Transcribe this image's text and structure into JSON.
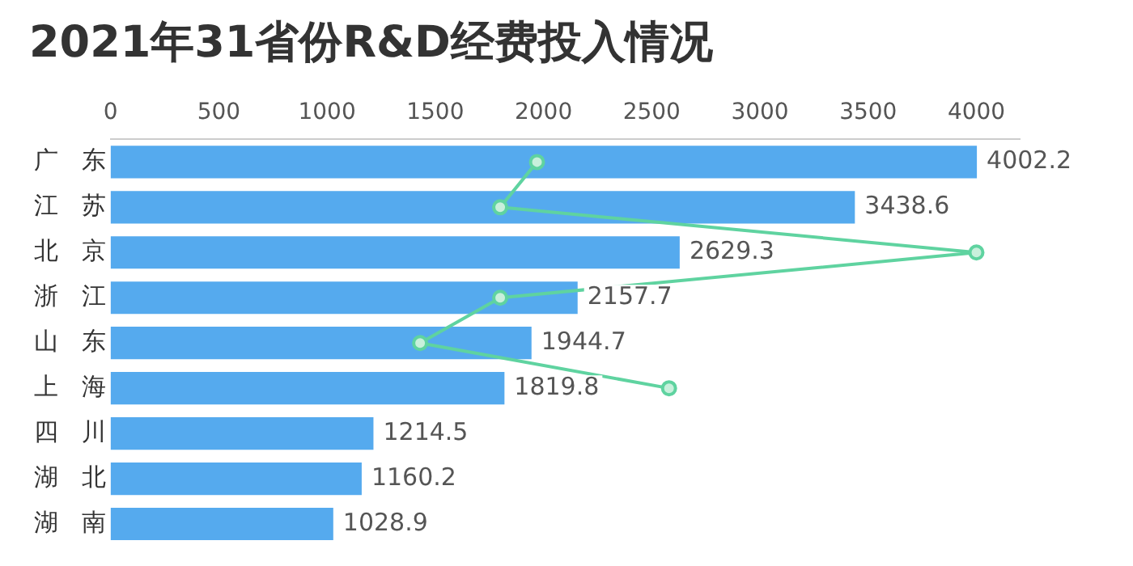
{
  "chart_data": {
    "type": "bar",
    "orientation": "horizontal",
    "title": "2021年31省份R&D经费投入情况",
    "categories": [
      "广东",
      "江苏",
      "北京",
      "浙江",
      "山东",
      "上海",
      "四川",
      "湖北",
      "湖南"
    ],
    "series": [
      {
        "color": "#55aaee",
        "values": [
          4002.2,
          3438.6,
          2629.3,
          2157.7,
          1944.7,
          1819.8,
          1214.5,
          1160.2,
          1028.9
        ],
        "value_labels": [
          "4002.2",
          "3438.6",
          "2629.3",
          "2157.7",
          "1944.7",
          "1819.8",
          "1214.5",
          "1160.2",
          "1028.9"
        ]
      },
      {
        "type": "line",
        "color": "#5fd3a0",
        "marker": "circle",
        "values": [
          1970,
          1800,
          4000,
          1800,
          1430,
          2580,
          null,
          null,
          null
        ]
      }
    ],
    "xlim": [
      0,
      4200
    ],
    "xticks": [
      0,
      500,
      1000,
      1500,
      2000,
      2500,
      3000,
      3500,
      4000
    ],
    "grid": false,
    "legend": false
  }
}
